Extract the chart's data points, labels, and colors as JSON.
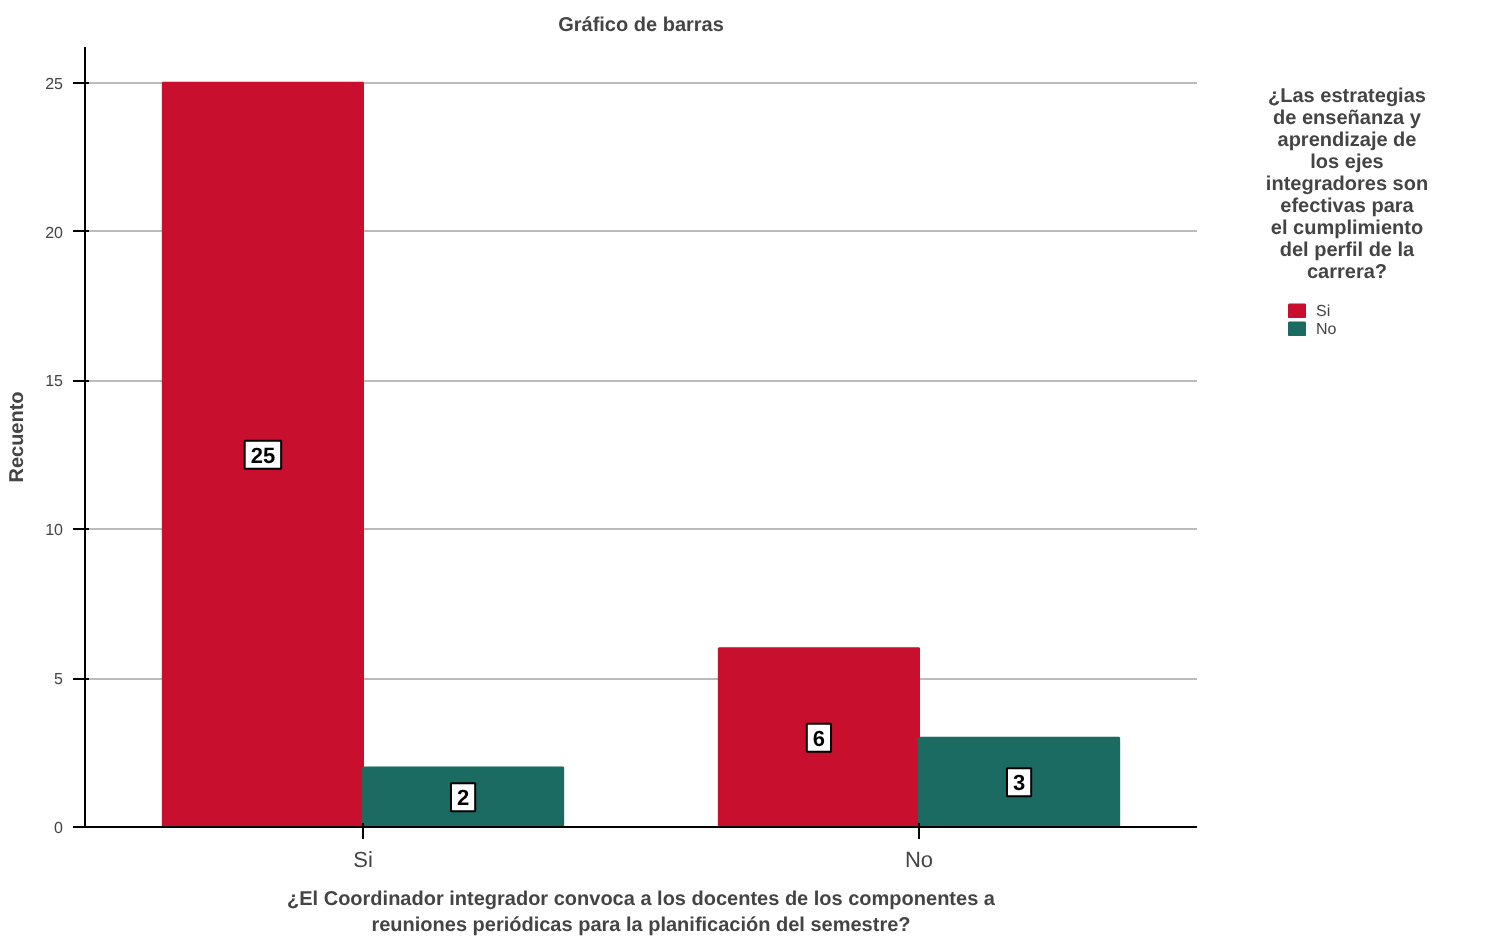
{
  "chart_data": {
    "type": "bar",
    "title": "Gráfico de barras",
    "xlabel": "¿El Coordinador integrador convoca a los docentes de los componentes a reuniones periódicas para la planificación del semestre?",
    "ylabel": "Recuento",
    "legend_title": "¿Las estrategias de enseñanza y aprendizaje de los ejes integradores son efectivas para el cumplimiento del perfil de la carrera?",
    "categories": [
      "Si",
      "No"
    ],
    "series": [
      {
        "name": "Si",
        "color": "#c8102e",
        "values": [
          25,
          6
        ]
      },
      {
        "name": "No",
        "color": "#1b6b63",
        "values": [
          2,
          3
        ]
      }
    ],
    "ylim": [
      0,
      26.2
    ],
    "yticks": [
      0,
      5,
      10,
      15,
      20,
      25
    ],
    "grid": "y",
    "legend": "right",
    "data_labels": true
  }
}
